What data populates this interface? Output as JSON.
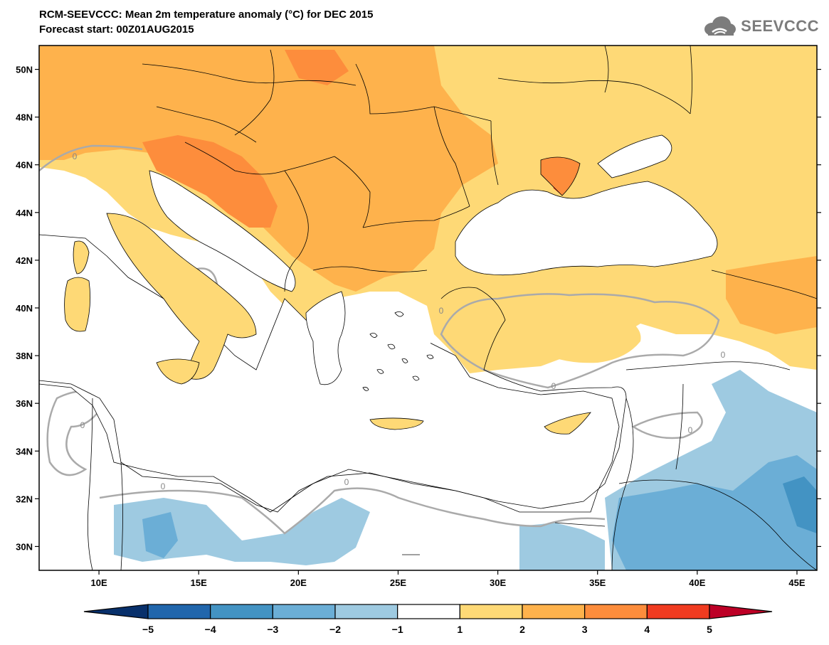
{
  "header": {
    "title_line1": "RCM-SEEVCCC: Mean 2m temperature anomaly (°C) for DEC 2015",
    "title_line2": "Forecast start: 00Z01AUG2015",
    "logo_text": "SEEVCCC",
    "logo_icon": "cloud-icon"
  },
  "map": {
    "lat_labels": [
      "50N",
      "48N",
      "46N",
      "44N",
      "42N",
      "40N",
      "38N",
      "36N",
      "34N",
      "32N",
      "30N"
    ],
    "lat_values": [
      50,
      48,
      46,
      44,
      42,
      40,
      38,
      36,
      34,
      32,
      30
    ],
    "lon_labels": [
      "10E",
      "15E",
      "20E",
      "25E",
      "30E",
      "35E",
      "40E",
      "45E"
    ],
    "lon_values": [
      10,
      15,
      20,
      25,
      30,
      35,
      40,
      45
    ],
    "lon_range": [
      7,
      46
    ],
    "lat_range": [
      29,
      51
    ],
    "contour_label": "0",
    "contour_color": "#aaaaaa"
  },
  "colorbar": {
    "ticks": [
      "−5",
      "−4",
      "−3",
      "−2",
      "−1",
      "1",
      "2",
      "3",
      "4",
      "5"
    ],
    "colors": [
      "#08306b",
      "#2166ac",
      "#4393c3",
      "#6baed6",
      "#9ecae1",
      "#ffffff",
      "#fed976",
      "#feb24c",
      "#fd8d3c",
      "#f03b20",
      "#bd0026"
    ],
    "tick_values": [
      -5,
      -4,
      -3,
      -2,
      -1,
      1,
      2,
      3,
      4,
      5
    ]
  },
  "palette": {
    "anom_p1": "#fed976",
    "anom_p2": "#feb24c",
    "anom_p3": "#fd8d3c",
    "anom_p4": "#f03b20",
    "anom_m1": "#9ecae1",
    "anom_m2": "#6baed6",
    "anom_m3": "#4393c3"
  }
}
